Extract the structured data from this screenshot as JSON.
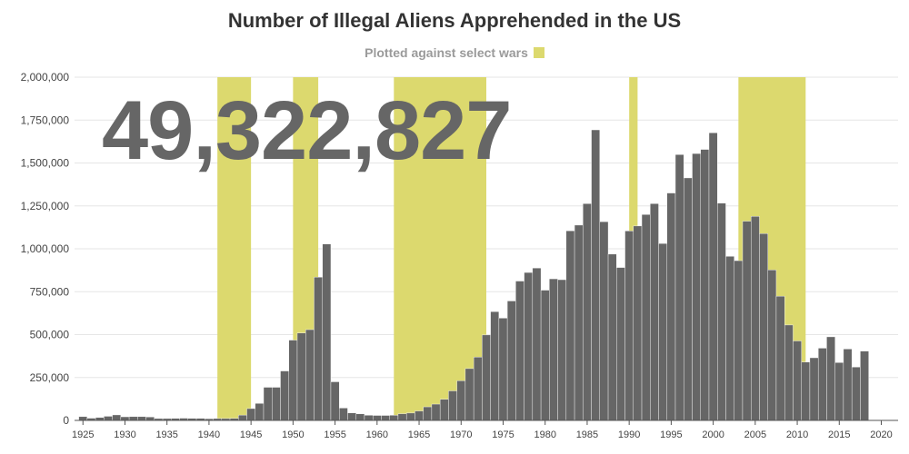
{
  "chart_data": {
    "type": "bar",
    "title": "Number of Illegal Aliens Apprehended in the US",
    "subtitle": "Plotted against select wars",
    "headline_total": "49,322,827",
    "colors": {
      "bars": "#666666",
      "wars": "#dcd96e",
      "grid": "#e6e6e6"
    },
    "xlim": [
      1924,
      2022
    ],
    "ylim": [
      0,
      2000000
    ],
    "y_ticks": [
      {
        "value": 0,
        "label": "0"
      },
      {
        "value": 250000,
        "label": "250,000"
      },
      {
        "value": 500000,
        "label": "500,000"
      },
      {
        "value": 750000,
        "label": "750,000"
      },
      {
        "value": 1000000,
        "label": "1,000,000"
      },
      {
        "value": 1250000,
        "label": "1,250,000"
      },
      {
        "value": 1500000,
        "label": "1,500,000"
      },
      {
        "value": 1750000,
        "label": "1,750,000"
      },
      {
        "value": 2000000,
        "label": "2,000,000"
      }
    ],
    "x_ticks": [
      "1925",
      "1930",
      "1935",
      "1940",
      "1945",
      "1950",
      "1955",
      "1960",
      "1965",
      "1970",
      "1975",
      "1980",
      "1985",
      "1990",
      "1995",
      "2000",
      "2005",
      "2010",
      "2015",
      "2020"
    ],
    "war_periods": [
      {
        "start": 1941,
        "end": 1945
      },
      {
        "start": 1950,
        "end": 1953
      },
      {
        "start": 1962,
        "end": 1973
      },
      {
        "start": 1990,
        "end": 1991
      },
      {
        "start": 2003,
        "end": 2011
      }
    ],
    "years": [
      1925,
      1926,
      1927,
      1928,
      1929,
      1930,
      1931,
      1932,
      1933,
      1934,
      1935,
      1936,
      1937,
      1938,
      1939,
      1940,
      1941,
      1942,
      1943,
      1944,
      1945,
      1946,
      1947,
      1948,
      1949,
      1950,
      1951,
      1952,
      1953,
      1954,
      1955,
      1956,
      1957,
      1958,
      1959,
      1960,
      1961,
      1962,
      1963,
      1964,
      1965,
      1966,
      1967,
      1968,
      1969,
      1970,
      1971,
      1972,
      1973,
      1974,
      1975,
      1976,
      1977,
      1978,
      1979,
      1980,
      1981,
      1982,
      1983,
      1984,
      1985,
      1986,
      1987,
      1988,
      1989,
      1990,
      1991,
      1992,
      1993,
      1994,
      1995,
      1996,
      1997,
      1998,
      1999,
      2000,
      2001,
      2002,
      2003,
      2004,
      2005,
      2006,
      2007,
      2008,
      2009,
      2010,
      2011,
      2012,
      2013,
      2014,
      2015,
      2016,
      2017,
      2018
    ],
    "values": [
      22000,
      13000,
      17000,
      24000,
      32000,
      21000,
      22000,
      22000,
      20000,
      11000,
      11000,
      12000,
      13000,
      12000,
      12000,
      10000,
      11000,
      11000,
      12000,
      31000,
      69000,
      99000,
      193000,
      193000,
      288000,
      468000,
      509000,
      529000,
      835000,
      1028000,
      225000,
      72000,
      44000,
      38000,
      30000,
      29000,
      29000,
      30000,
      39000,
      43000,
      55000,
      79000,
      95000,
      123000,
      172000,
      231000,
      302000,
      369000,
      498000,
      634000,
      596000,
      696000,
      812000,
      862000,
      888000,
      759000,
      825000,
      820000,
      1105000,
      1138000,
      1263000,
      1693000,
      1158000,
      969000,
      891000,
      1104000,
      1133000,
      1200000,
      1263000,
      1031000,
      1325000,
      1549000,
      1413000,
      1555000,
      1579000,
      1676000,
      1266000,
      956000,
      931000,
      1161000,
      1189000,
      1089000,
      877000,
      724000,
      556000,
      463000,
      340000,
      365000,
      421000,
      487000,
      337000,
      416000,
      311000,
      404000
    ]
  }
}
